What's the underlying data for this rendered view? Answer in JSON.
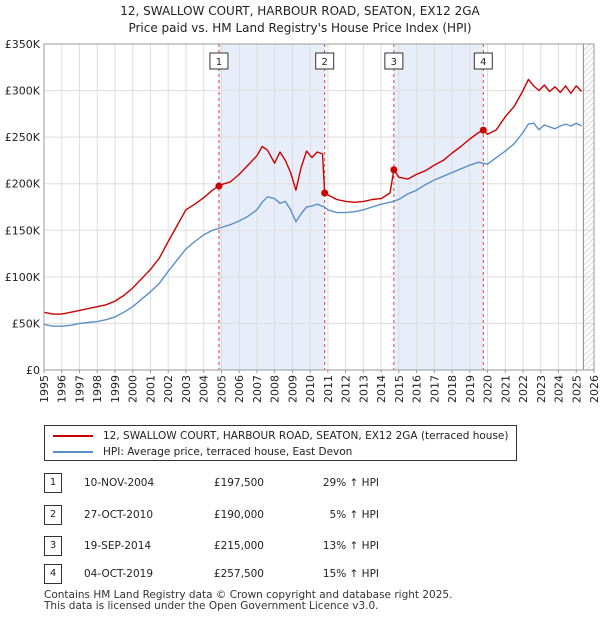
{
  "chart_data": {
    "type": "line",
    "title": "12, SWALLOW COURT, HARBOUR ROAD, SEATON, EX12 2GA",
    "subtitle": "Price paid vs. HM Land Registry's House Price Index (HPI)",
    "xlabel": "",
    "ylabel": "",
    "xlim": [
      1995,
      2026
    ],
    "ylim": [
      0,
      350000
    ],
    "x_ticks": [
      1995,
      1996,
      1997,
      1998,
      1999,
      2000,
      2001,
      2002,
      2003,
      2004,
      2005,
      2006,
      2007,
      2008,
      2009,
      2010,
      2011,
      2012,
      2013,
      2014,
      2015,
      2016,
      2017,
      2018,
      2019,
      2020,
      2021,
      2022,
      2023,
      2024,
      2025,
      2026
    ],
    "y_ticks": [
      {
        "value": 0,
        "label": "£0"
      },
      {
        "value": 50000,
        "label": "£50K"
      },
      {
        "value": 100000,
        "label": "£100K"
      },
      {
        "value": 150000,
        "label": "£150K"
      },
      {
        "value": 200000,
        "label": "£200K"
      },
      {
        "value": 250000,
        "label": "£250K"
      },
      {
        "value": 300000,
        "label": "£300K"
      },
      {
        "value": 350000,
        "label": "£350K"
      }
    ],
    "grid": true,
    "shaded_periods": [
      [
        2004.86,
        2010.82
      ],
      [
        2014.72,
        2019.76
      ]
    ],
    "data_end_year": 2025.4,
    "series": [
      {
        "name": "12, SWALLOW COURT, HARBOUR ROAD, SEATON, EX12 2GA (terraced house)",
        "color": "#cc0000",
        "x": [
          1995,
          1995.5,
          1996,
          1996.5,
          1997,
          1997.5,
          1998,
          1998.5,
          1999,
          1999.5,
          2000,
          2000.5,
          2001,
          2001.5,
          2002,
          2002.5,
          2003,
          2003.5,
          2004,
          2004.5,
          2004.86,
          2005,
          2005.5,
          2006,
          2006.5,
          2007,
          2007.3,
          2007.6,
          2008,
          2008.3,
          2008.6,
          2008.9,
          2009.2,
          2009.5,
          2009.8,
          2010.1,
          2010.4,
          2010.7,
          2010.82,
          2011,
          2011.5,
          2012,
          2012.5,
          2013,
          2013.5,
          2014,
          2014.5,
          2014.72,
          2015,
          2015.5,
          2016,
          2016.5,
          2017,
          2017.5,
          2018,
          2018.5,
          2019,
          2019.5,
          2019.76,
          2020,
          2020.5,
          2021,
          2021.5,
          2022,
          2022.3,
          2022.6,
          2022.9,
          2023.2,
          2023.5,
          2023.8,
          2024.1,
          2024.4,
          2024.7,
          2025,
          2025.3
        ],
        "values": [
          62000,
          60000,
          60000,
          62000,
          64000,
          66000,
          68000,
          70000,
          74000,
          80000,
          88000,
          98000,
          108000,
          120000,
          138000,
          155000,
          172000,
          178000,
          185000,
          193000,
          197500,
          199000,
          202000,
          210000,
          220000,
          230000,
          240000,
          236000,
          222000,
          234000,
          225000,
          212000,
          193000,
          218000,
          235000,
          228000,
          234000,
          232000,
          190000,
          188000,
          183000,
          181000,
          180000,
          181000,
          183000,
          184000,
          190000,
          215000,
          207000,
          205000,
          210000,
          214000,
          220000,
          225000,
          233000,
          240000,
          248000,
          255000,
          257500,
          253000,
          258000,
          272000,
          283000,
          300000,
          312000,
          305000,
          300000,
          306000,
          299000,
          304000,
          298000,
          305000,
          297000,
          305000,
          299000
        ]
      },
      {
        "name": "HPI: Average price, terraced house, East Devon",
        "color": "#5b8fc9",
        "x": [
          1995,
          1995.5,
          1996,
          1996.5,
          1997,
          1997.5,
          1998,
          1998.5,
          1999,
          1999.5,
          2000,
          2000.5,
          2001,
          2001.5,
          2002,
          2002.5,
          2003,
          2003.5,
          2004,
          2004.5,
          2005,
          2005.5,
          2006,
          2006.5,
          2007,
          2007.3,
          2007.6,
          2008,
          2008.3,
          2008.6,
          2008.9,
          2009.2,
          2009.5,
          2009.8,
          2010.1,
          2010.4,
          2010.8,
          2011,
          2011.5,
          2012,
          2012.5,
          2013,
          2013.5,
          2014,
          2014.5,
          2015,
          2015.5,
          2016,
          2016.5,
          2017,
          2017.5,
          2018,
          2018.5,
          2019,
          2019.5,
          2020,
          2020.5,
          2021,
          2021.5,
          2022,
          2022.3,
          2022.6,
          2022.9,
          2023.2,
          2023.5,
          2023.8,
          2024.1,
          2024.4,
          2024.7,
          2025,
          2025.3
        ],
        "values": [
          49000,
          47000,
          47000,
          48000,
          50000,
          51000,
          52000,
          54000,
          57000,
          62000,
          68000,
          76000,
          84000,
          93000,
          106000,
          118000,
          130000,
          138000,
          145000,
          150000,
          153000,
          156000,
          160000,
          165000,
          172000,
          180000,
          186000,
          184000,
          179000,
          181000,
          172000,
          159000,
          168000,
          175000,
          176000,
          178000,
          175000,
          172000,
          169000,
          169000,
          170000,
          172000,
          175000,
          178000,
          180000,
          183000,
          189000,
          193000,
          199000,
          204000,
          208000,
          212000,
          216000,
          220000,
          223000,
          221000,
          228000,
          235000,
          243000,
          255000,
          264000,
          265000,
          258000,
          263000,
          261000,
          259000,
          262000,
          264000,
          262000,
          265000,
          262000
        ]
      }
    ],
    "markers": [
      {
        "id": "1",
        "x": 2004.86,
        "value": 197500
      },
      {
        "id": "2",
        "x": 2010.82,
        "value": 190000
      },
      {
        "id": "3",
        "x": 2014.72,
        "value": 215000
      },
      {
        "id": "4",
        "x": 2019.76,
        "value": 257500
      }
    ]
  },
  "legend": {
    "property_label": "12, SWALLOW COURT, HARBOUR ROAD, SEATON, EX12 2GA (terraced house)",
    "hpi_label": "HPI: Average price, terraced house, East Devon"
  },
  "transactions": [
    {
      "num": "1",
      "date": "10-NOV-2004",
      "price": "£197,500",
      "hpi": "29% ↑ HPI"
    },
    {
      "num": "2",
      "date": "27-OCT-2010",
      "price": "£190,000",
      "hpi": "5% ↑ HPI"
    },
    {
      "num": "3",
      "date": "19-SEP-2014",
      "price": "£215,000",
      "hpi": "13% ↑ HPI"
    },
    {
      "num": "4",
      "date": "04-OCT-2019",
      "price": "£257,500",
      "hpi": "15% ↑ HPI"
    }
  ],
  "footer": {
    "line1": "Contains HM Land Registry data © Crown copyright and database right 2025.",
    "line2": "This data is licensed under the Open Government Licence v3.0."
  }
}
